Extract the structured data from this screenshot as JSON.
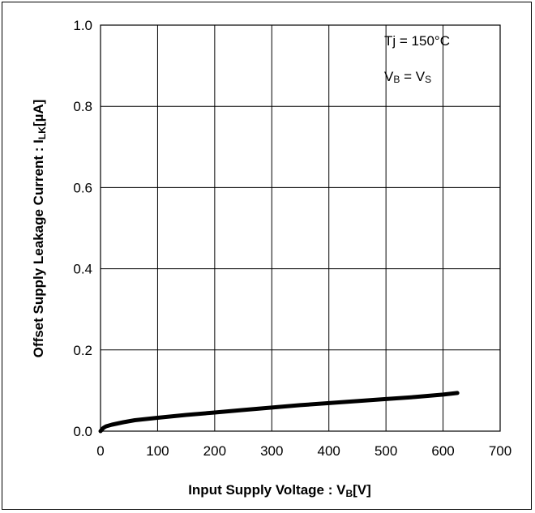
{
  "chart_data": {
    "type": "line",
    "x": [
      0,
      5,
      10,
      20,
      40,
      60,
      100,
      150,
      200,
      250,
      300,
      350,
      400,
      450,
      500,
      550,
      600,
      625
    ],
    "y": [
      0.0,
      0.008,
      0.012,
      0.016,
      0.022,
      0.027,
      0.033,
      0.04,
      0.046,
      0.052,
      0.058,
      0.064,
      0.069,
      0.074,
      0.079,
      0.084,
      0.09,
      0.094
    ],
    "xlabel_main": "Input Supply Voltage : V",
    "xlabel_sub": "B",
    "xlabel_unit": "[V]",
    "ylabel_main": "Offset Supply Leakage Current : I",
    "ylabel_sub": "LK",
    "ylabel_unit": "[µA]",
    "xlim": [
      0,
      700
    ],
    "ylim": [
      0.0,
      1.0
    ],
    "xticks": [
      "0",
      "100",
      "200",
      "300",
      "400",
      "500",
      "600",
      "700"
    ],
    "yticks": [
      "0.0",
      "0.2",
      "0.4",
      "0.6",
      "0.8",
      "1.0"
    ],
    "grid": true,
    "annotations": {
      "line1": "Tj = 150°C",
      "line2_a": "V",
      "line2_a_sub": "B",
      "line2_b": " = V",
      "line2_b_sub": "S"
    },
    "series_color": "#000000"
  }
}
